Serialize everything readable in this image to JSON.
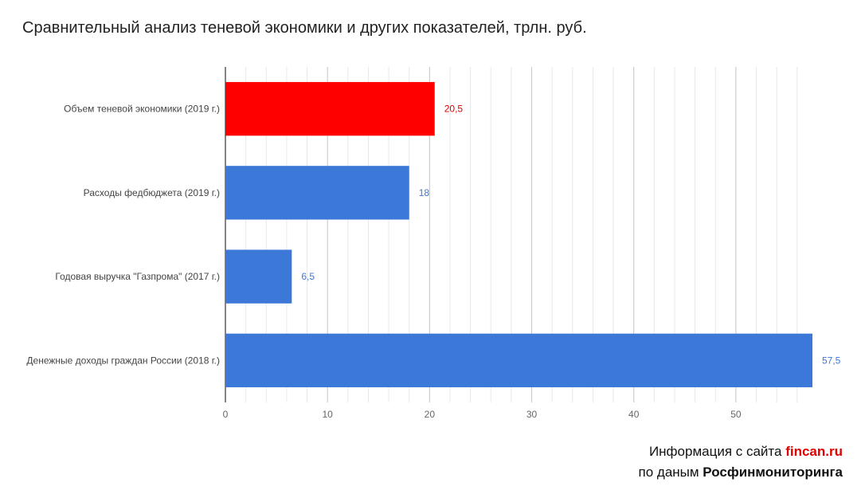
{
  "chart_data": {
    "type": "bar",
    "orientation": "horizontal",
    "title": "Сравнительный анализ теневой экономики и других показателей, трлн. руб.",
    "categories": [
      "Объем теневой экономики (2019 г.)",
      "Расходы федбюджета (2019 г.)",
      "Годовая выручка \"Газпрома\" (2017 г.)",
      "Денежные доходы граждан России (2018 г.)"
    ],
    "values": [
      20.5,
      18,
      6.5,
      57.5
    ],
    "value_labels": [
      "20,5",
      "18",
      "6,5",
      "57,5"
    ],
    "bar_colors": [
      "#ff0000",
      "#3c78d8",
      "#3c78d8",
      "#3c78d8"
    ],
    "label_colors": [
      "#e00000",
      "#3c78d8",
      "#3c78d8",
      "#3c78d8"
    ],
    "xlim": [
      0,
      57.5
    ],
    "x_ticks": [
      0,
      10,
      20,
      30,
      40,
      50
    ],
    "x_tick_labels": [
      "0",
      "10",
      "20",
      "30",
      "40",
      "50"
    ],
    "grid": true,
    "minor_grid_step": 2,
    "xlabel": "",
    "ylabel": ""
  },
  "credit": {
    "line1_prefix": "Информация с сайта ",
    "line1_site": "fincan.ru",
    "line2_prefix": "по даным ",
    "line2_source": "Росфинмониторинга",
    "site_color": "#e00000"
  }
}
